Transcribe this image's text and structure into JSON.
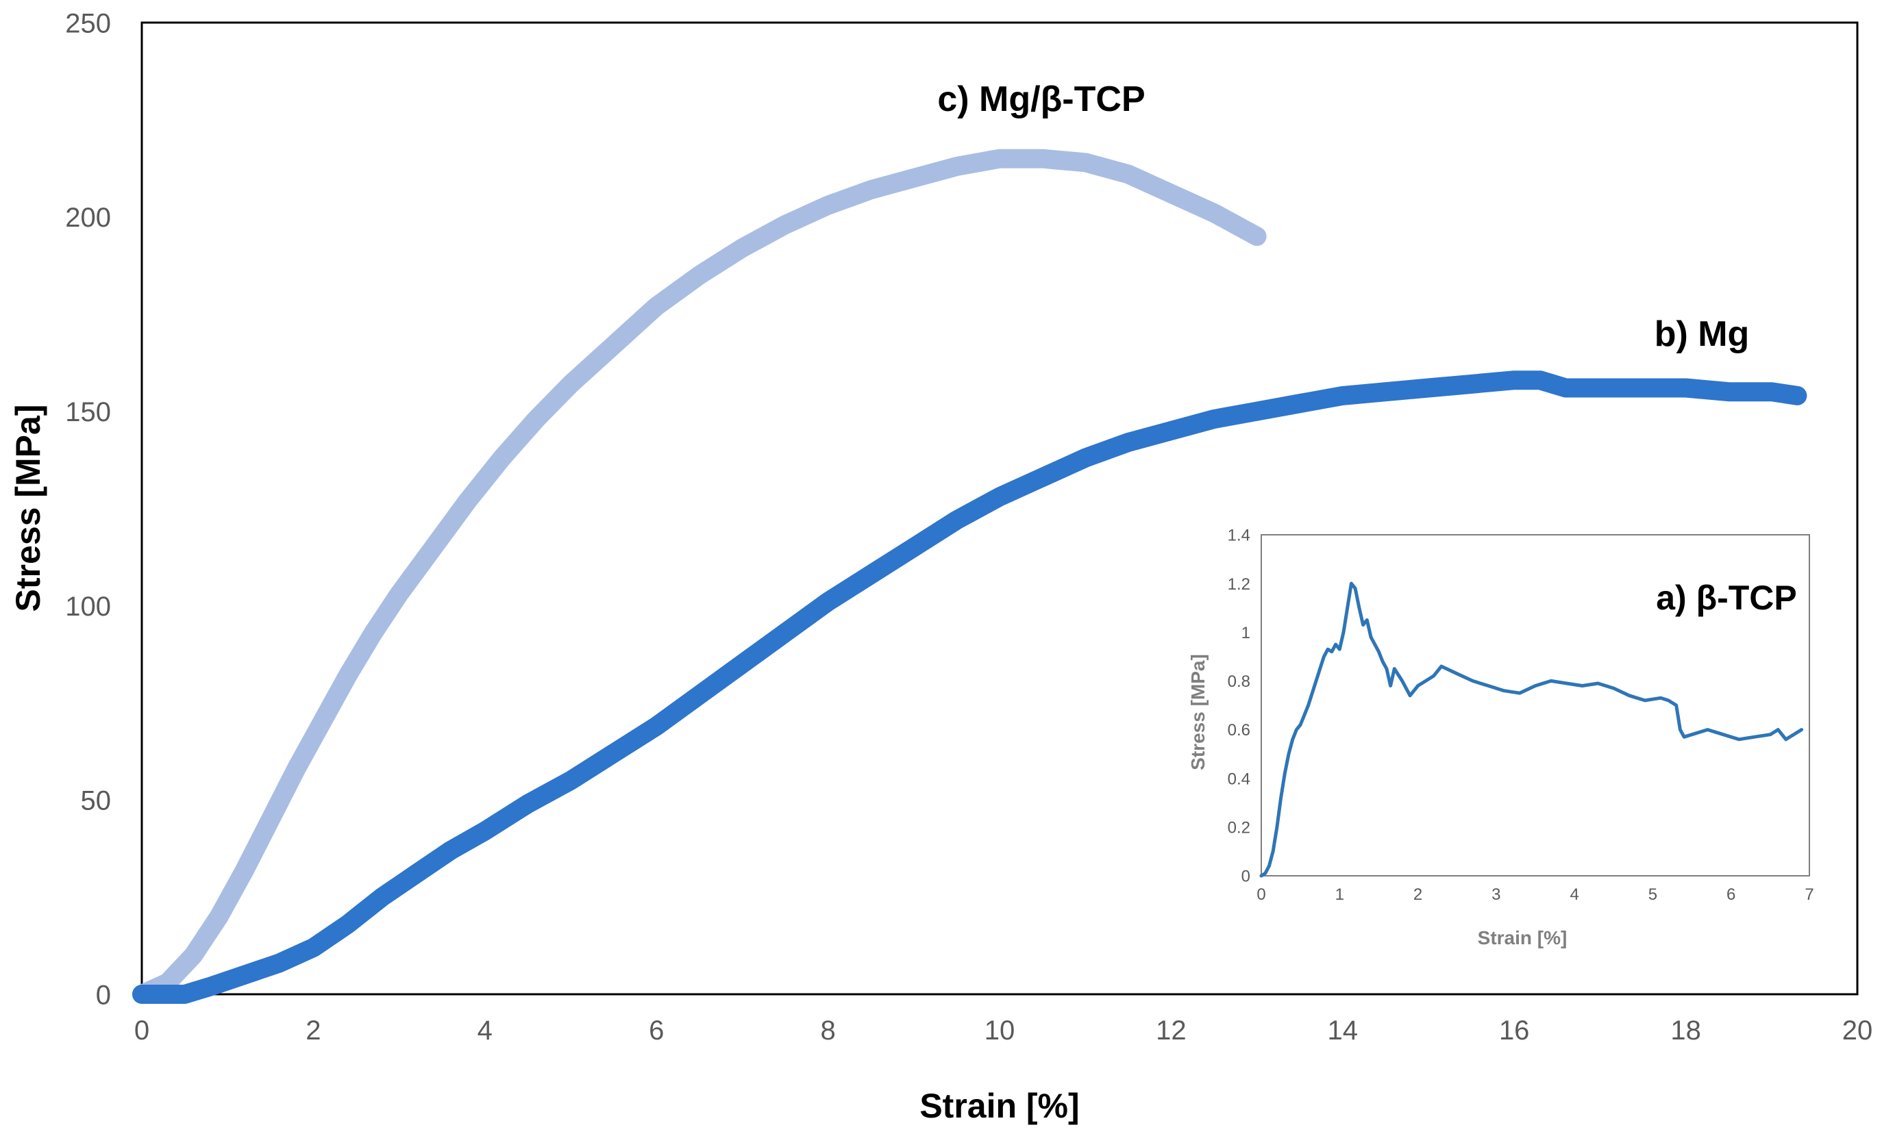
{
  "chart_data": [
    {
      "id": "main",
      "type": "line",
      "title": "",
      "xlabel": "Strain [%]",
      "ylabel": "Stress [MPa]",
      "xlim": [
        0,
        20
      ],
      "ylim": [
        0,
        250
      ],
      "xticks": [
        0,
        2,
        4,
        6,
        8,
        10,
        12,
        14,
        16,
        18,
        20
      ],
      "yticks": [
        0,
        50,
        100,
        150,
        200,
        250
      ],
      "grid": false,
      "legend": "none",
      "series": [
        {
          "name": "c) Mg/β-TCP",
          "color": "#a9bde3",
          "x": [
            0,
            0.3,
            0.6,
            0.9,
            1.2,
            1.5,
            1.8,
            2.1,
            2.4,
            2.7,
            3.0,
            3.4,
            3.8,
            4.2,
            4.6,
            5.0,
            5.5,
            6.0,
            6.5,
            7.0,
            7.5,
            8.0,
            8.5,
            9.0,
            9.5,
            10.0,
            10.5,
            11.0,
            11.5,
            12.0,
            12.5,
            13.0
          ],
          "y": [
            0,
            3,
            10,
            20,
            32,
            45,
            58,
            70,
            82,
            93,
            103,
            115,
            127,
            138,
            148,
            157,
            167,
            177,
            185,
            192,
            198,
            203,
            207,
            210,
            213,
            215,
            215,
            214,
            211,
            206,
            201,
            195
          ]
        },
        {
          "name": "b) Mg",
          "color": "#2e75cc",
          "x": [
            0,
            0.5,
            0.8,
            1.2,
            1.6,
            2.0,
            2.4,
            2.8,
            3.2,
            3.6,
            4.0,
            4.5,
            5.0,
            5.5,
            6.0,
            6.5,
            7.0,
            7.5,
            8.0,
            8.5,
            9.0,
            9.5,
            10.0,
            10.5,
            11.0,
            11.5,
            12.0,
            12.5,
            13.0,
            13.5,
            14.0,
            14.5,
            15.0,
            15.5,
            16.0,
            16.3,
            16.6,
            17.0,
            17.5,
            18.0,
            18.5,
            19.0,
            19.3
          ],
          "y": [
            0,
            0,
            2,
            5,
            8,
            12,
            18,
            25,
            31,
            37,
            42,
            49,
            55,
            62,
            69,
            77,
            85,
            93,
            101,
            108,
            115,
            122,
            128,
            133,
            138,
            142,
            145,
            148,
            150,
            152,
            154,
            155,
            156,
            157,
            158,
            158,
            156,
            156,
            156,
            156,
            155,
            155,
            154
          ]
        }
      ]
    },
    {
      "id": "inset",
      "type": "line",
      "title": "",
      "xlabel": "Strain [%]",
      "ylabel": "Stress [MPa]",
      "xlim": [
        0,
        7
      ],
      "ylim": [
        0,
        1.4
      ],
      "xticks": [
        0,
        1,
        2,
        3,
        4,
        5,
        6,
        7
      ],
      "yticks": [
        0,
        0.2,
        0.4,
        0.6,
        0.8,
        1,
        1.2,
        1.4
      ],
      "grid": false,
      "legend": "none",
      "series": [
        {
          "name": "a) β-TCP",
          "color": "#2e75b6",
          "x": [
            0,
            0.05,
            0.1,
            0.15,
            0.2,
            0.25,
            0.3,
            0.35,
            0.4,
            0.45,
            0.5,
            0.6,
            0.7,
            0.8,
            0.85,
            0.9,
            0.95,
            1.0,
            1.05,
            1.1,
            1.15,
            1.2,
            1.25,
            1.3,
            1.35,
            1.4,
            1.45,
            1.5,
            1.55,
            1.6,
            1.65,
            1.7,
            1.8,
            1.9,
            2.0,
            2.1,
            2.2,
            2.3,
            2.5,
            2.7,
            2.9,
            3.1,
            3.3,
            3.5,
            3.7,
            3.9,
            4.1,
            4.3,
            4.5,
            4.7,
            4.9,
            5.1,
            5.2,
            5.3,
            5.35,
            5.4,
            5.5,
            5.7,
            5.9,
            6.1,
            6.3,
            6.5,
            6.6,
            6.7,
            6.8,
            6.9
          ],
          "y": [
            0,
            0.01,
            0.04,
            0.1,
            0.2,
            0.32,
            0.42,
            0.5,
            0.56,
            0.6,
            0.62,
            0.7,
            0.8,
            0.9,
            0.93,
            0.92,
            0.95,
            0.93,
            1.0,
            1.1,
            1.2,
            1.18,
            1.1,
            1.03,
            1.05,
            0.98,
            0.95,
            0.92,
            0.88,
            0.85,
            0.78,
            0.85,
            0.8,
            0.74,
            0.78,
            0.8,
            0.82,
            0.86,
            0.83,
            0.8,
            0.78,
            0.76,
            0.75,
            0.78,
            0.8,
            0.79,
            0.78,
            0.79,
            0.77,
            0.74,
            0.72,
            0.73,
            0.72,
            0.7,
            0.6,
            0.57,
            0.58,
            0.6,
            0.58,
            0.56,
            0.57,
            0.58,
            0.6,
            0.56,
            0.58,
            0.6
          ]
        }
      ]
    }
  ]
}
